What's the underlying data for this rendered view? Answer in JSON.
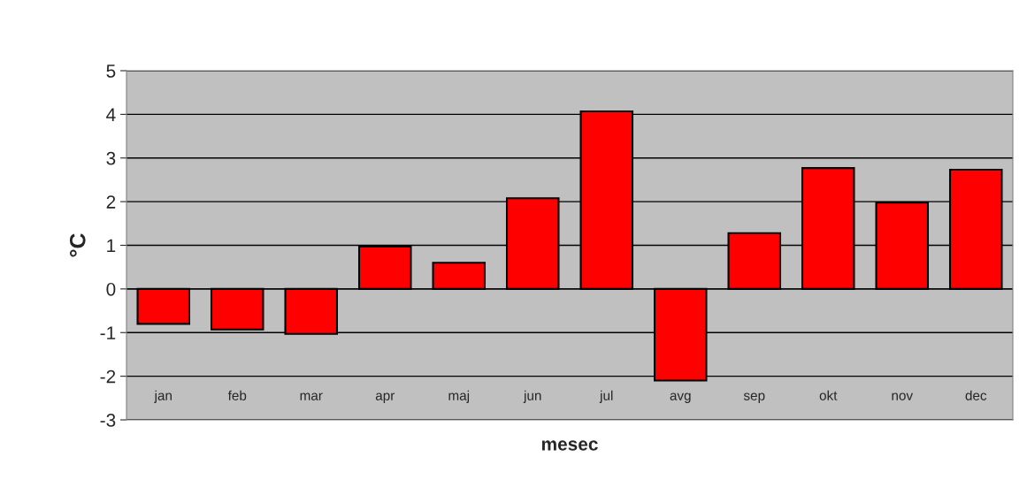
{
  "chart_data": {
    "type": "bar",
    "xlabel": "mesec",
    "ylabel": "°C",
    "categories": [
      "jan",
      "feb",
      "mar",
      "apr",
      "maj",
      "jun",
      "jul",
      "avg",
      "sep",
      "okt",
      "nov",
      "dec"
    ],
    "values": [
      -0.8,
      -0.93,
      -1.03,
      0.97,
      0.6,
      2.08,
      4.07,
      -2.1,
      1.28,
      2.77,
      1.98,
      2.73
    ],
    "color": "#ff0000",
    "ylim": [
      -3,
      5
    ],
    "yticks": [
      -3,
      -2,
      -1,
      0,
      1,
      2,
      3,
      4,
      5
    ],
    "grid": "y"
  }
}
